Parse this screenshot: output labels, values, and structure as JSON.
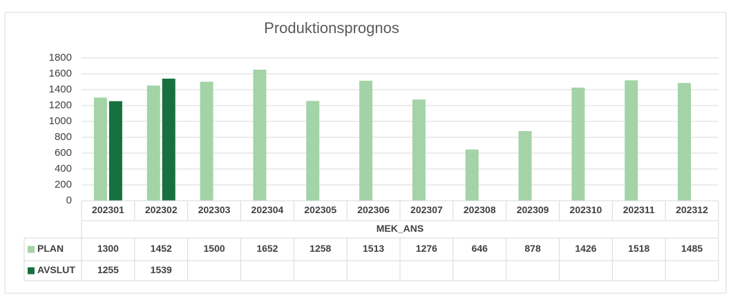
{
  "chart_data": {
    "type": "bar",
    "title": "Produktionsprognos",
    "x_label": "MEK_ANS",
    "categories": [
      "202301",
      "202302",
      "202303",
      "202304",
      "202305",
      "202306",
      "202307",
      "202308",
      "202309",
      "202310",
      "202311",
      "202312"
    ],
    "series": [
      {
        "name": "PLAN",
        "color": "#a3d3a6",
        "values": [
          1300,
          1452,
          1500,
          1652,
          1258,
          1513,
          1276,
          646,
          878,
          1426,
          1518,
          1485
        ]
      },
      {
        "name": "AVSLUT",
        "color": "#17703f",
        "values": [
          1255,
          1539,
          null,
          null,
          null,
          null,
          null,
          null,
          null,
          null,
          null,
          null
        ]
      }
    ],
    "ylim": [
      0,
      1800
    ],
    "yticks": [
      0,
      200,
      400,
      600,
      800,
      1000,
      1200,
      1400,
      1600,
      1800
    ],
    "grid": true
  }
}
